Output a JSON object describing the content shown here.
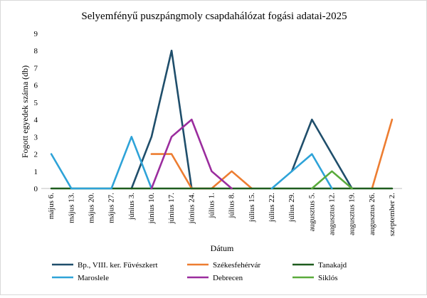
{
  "chart_data": {
    "type": "line",
    "title": "Selyemfényű puszpángmoly csapdahálózat fogási adatai-2025",
    "xlabel": "Dátum",
    "ylabel": "Fogott egyedek száma (db)",
    "ylim": [
      0,
      9
    ],
    "yticks": [
      0,
      1,
      2,
      3,
      4,
      5,
      6,
      7,
      8,
      9
    ],
    "grid": false,
    "legend_position": "bottom",
    "categories": [
      "május 6.",
      "május 13.",
      "május 20.",
      "május 27.",
      "június 3.",
      "június 10.",
      "június 17.",
      "június 24.",
      "július 1.",
      "július 8.",
      "július 15.",
      "július 22.",
      "július 29.",
      "augusztus 5.",
      "augusztus 12.",
      "augusztus 19.",
      "augusztus 26.",
      "szeptember 2."
    ],
    "series": [
      {
        "name": "Bp., VIII. ker. Füvészkert",
        "color": "#1f4e6b",
        "values": [
          null,
          null,
          null,
          null,
          0,
          3,
          8,
          0,
          null,
          null,
          null,
          null,
          1,
          4,
          2,
          0,
          null,
          null
        ]
      },
      {
        "name": "Székesfehérvár",
        "color": "#ed7d31",
        "values": [
          null,
          null,
          null,
          null,
          null,
          2,
          2,
          0,
          0,
          1,
          0,
          null,
          null,
          null,
          null,
          null,
          0,
          4
        ]
      },
      {
        "name": "Tanakajd",
        "color": "#1e5c1e",
        "values": [
          0,
          0,
          0,
          0,
          0,
          0,
          0,
          0,
          0,
          0,
          0,
          0,
          0,
          0,
          0,
          0,
          0,
          0
        ]
      },
      {
        "name": "Maroslele",
        "color": "#2ea3d8",
        "values": [
          2,
          0,
          0,
          0,
          3,
          0,
          null,
          null,
          null,
          null,
          null,
          0,
          1,
          2,
          0,
          null,
          null,
          null
        ]
      },
      {
        "name": "Debrecen",
        "color": "#9b2d9e",
        "values": [
          null,
          null,
          null,
          null,
          null,
          0,
          3,
          4,
          1,
          0,
          null,
          null,
          null,
          null,
          null,
          null,
          null,
          null
        ]
      },
      {
        "name": "Siklós",
        "color": "#5aab3c",
        "values": [
          null,
          null,
          null,
          null,
          null,
          null,
          null,
          null,
          null,
          null,
          null,
          null,
          null,
          0,
          1,
          0,
          null,
          null
        ]
      }
    ]
  }
}
